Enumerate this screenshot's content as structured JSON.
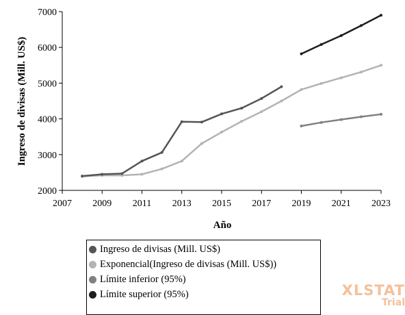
{
  "chart_data": {
    "type": "line",
    "xlabel": "Año",
    "ylabel": "Ingreso de divisas (Mill. US$)",
    "xlim": [
      2007,
      2023
    ],
    "ylim": [
      2000,
      7000
    ],
    "x_ticks": [
      "2007",
      "2009",
      "2011",
      "2013",
      "2015",
      "2017",
      "2019",
      "2021",
      "2023"
    ],
    "y_ticks": [
      "2000",
      "3000",
      "4000",
      "5000",
      "6000",
      "7000"
    ],
    "grid": false,
    "legend_position": "bottom",
    "series": [
      {
        "name": "Ingreso de divisas (Mill. US$)",
        "color": "#555555",
        "x": [
          2008,
          2009,
          2010,
          2011,
          2012,
          2013,
          2014,
          2015,
          2016,
          2017,
          2018
        ],
        "values": [
          2400,
          2450,
          2470,
          2820,
          3060,
          3920,
          3910,
          4140,
          4300,
          4570,
          4900
        ]
      },
      {
        "name": "Exponencial(Ingreso de divisas (Mill. US$))",
        "color": "#b3b3b3",
        "x": [
          2008,
          2009,
          2010,
          2011,
          2012,
          2013,
          2014,
          2015,
          2016,
          2017,
          2018,
          2019,
          2020,
          2021,
          2022,
          2023
        ],
        "values": [
          2390,
          2420,
          2420,
          2450,
          2600,
          2820,
          3310,
          3630,
          3930,
          4200,
          4500,
          4820,
          4990,
          5150,
          5310,
          5500
        ]
      },
      {
        "name": "Límite inferior (95%)",
        "color": "#808080",
        "x": [
          2019,
          2020,
          2021,
          2022,
          2023
        ],
        "values": [
          3800,
          3900,
          3980,
          4060,
          4130
        ]
      },
      {
        "name": "Límite superior (95%)",
        "color": "#1e1e1e",
        "x": [
          2019,
          2020,
          2021,
          2022,
          2023
        ],
        "values": [
          5820,
          6080,
          6330,
          6610,
          6900
        ]
      }
    ]
  },
  "watermark": {
    "text": "XLSTAT",
    "subtext": "Trial",
    "color": "#f5c09a"
  }
}
